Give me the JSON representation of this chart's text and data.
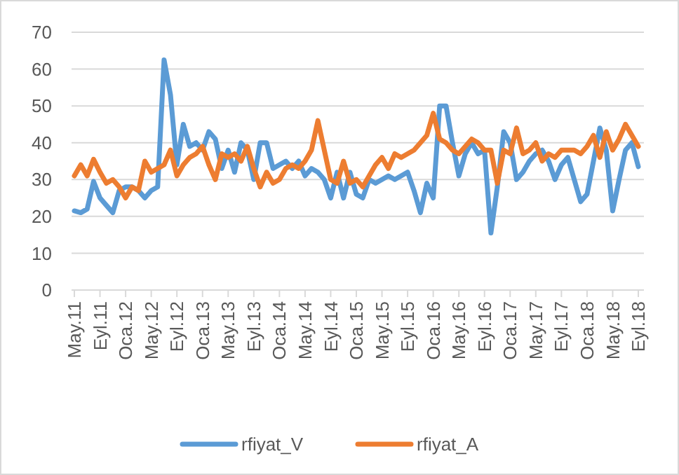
{
  "chart_data": {
    "type": "line",
    "categories": [
      "May.11",
      null,
      null,
      null,
      "Eyl.11",
      null,
      null,
      null,
      "Oca.12",
      null,
      null,
      null,
      "May.12",
      null,
      null,
      null,
      "Eyl.12",
      null,
      null,
      null,
      "Oca.13",
      null,
      null,
      null,
      "May.13",
      null,
      null,
      null,
      "Eyl.13",
      null,
      null,
      null,
      "Oca.14",
      null,
      null,
      null,
      "May.14",
      null,
      null,
      null,
      "Eyl.14",
      null,
      null,
      null,
      "Oca.15",
      null,
      null,
      null,
      "May.15",
      null,
      null,
      null,
      "Eyl.15",
      null,
      null,
      null,
      "Oca.16",
      null,
      null,
      null,
      "May.16",
      null,
      null,
      null,
      "Eyl.16",
      null,
      null,
      null,
      "Oca.17",
      null,
      null,
      null,
      "May.17",
      null,
      null,
      null,
      "Eyl.17",
      null,
      null,
      null,
      "Oca.18",
      null,
      null,
      null,
      "May.18",
      null,
      null,
      null,
      "Eyl.18"
    ],
    "series": [
      {
        "name": "rfiyat_V",
        "color": "#5b9bd5",
        "values": [
          21.5,
          21,
          22,
          29.5,
          25,
          23,
          21,
          27,
          28,
          28,
          27,
          25,
          27,
          28,
          62.5,
          53,
          34,
          45,
          39,
          40,
          38,
          43,
          41,
          33,
          38,
          32,
          40,
          38,
          30,
          40,
          40,
          33,
          34,
          35,
          33,
          35,
          31,
          33,
          32,
          30,
          25,
          32,
          25,
          32,
          26,
          25,
          30,
          29,
          30,
          31,
          30,
          31,
          32,
          27,
          21,
          29,
          25,
          50,
          50,
          40,
          31,
          37,
          40,
          37,
          38,
          15.5,
          28,
          43,
          40,
          30,
          32,
          35,
          37,
          38,
          35,
          30,
          34,
          36,
          30,
          24,
          26,
          35,
          44,
          38,
          21.5,
          30,
          38,
          40,
          33.5
        ]
      },
      {
        "name": "rfiyat_A",
        "color": "#ed7d31",
        "values": [
          31,
          34,
          31,
          35.5,
          32,
          29,
          30,
          28,
          25,
          28,
          27,
          35,
          32,
          33,
          34,
          38,
          31,
          34,
          36,
          37,
          39,
          34,
          30,
          37,
          36,
          37,
          35,
          39,
          33,
          28,
          32,
          29,
          30,
          33,
          34,
          33,
          35,
          38,
          46,
          38,
          30,
          29,
          35,
          29,
          30,
          28,
          31,
          34,
          36,
          33,
          37,
          36,
          37,
          38,
          40,
          42,
          48,
          41,
          40,
          38,
          37,
          39,
          41,
          40,
          38,
          38,
          29,
          38,
          37,
          44,
          37,
          38,
          40,
          35,
          37,
          36,
          38,
          38,
          38,
          37,
          39,
          42,
          36,
          43,
          38,
          41,
          45,
          42,
          39
        ]
      }
    ],
    "ylim": [
      0,
      70
    ],
    "yticks": [
      0,
      10,
      20,
      30,
      40,
      50,
      60,
      70
    ],
    "grid": "y",
    "legend": "bottom",
    "line_style": "solid",
    "marker": "none"
  }
}
